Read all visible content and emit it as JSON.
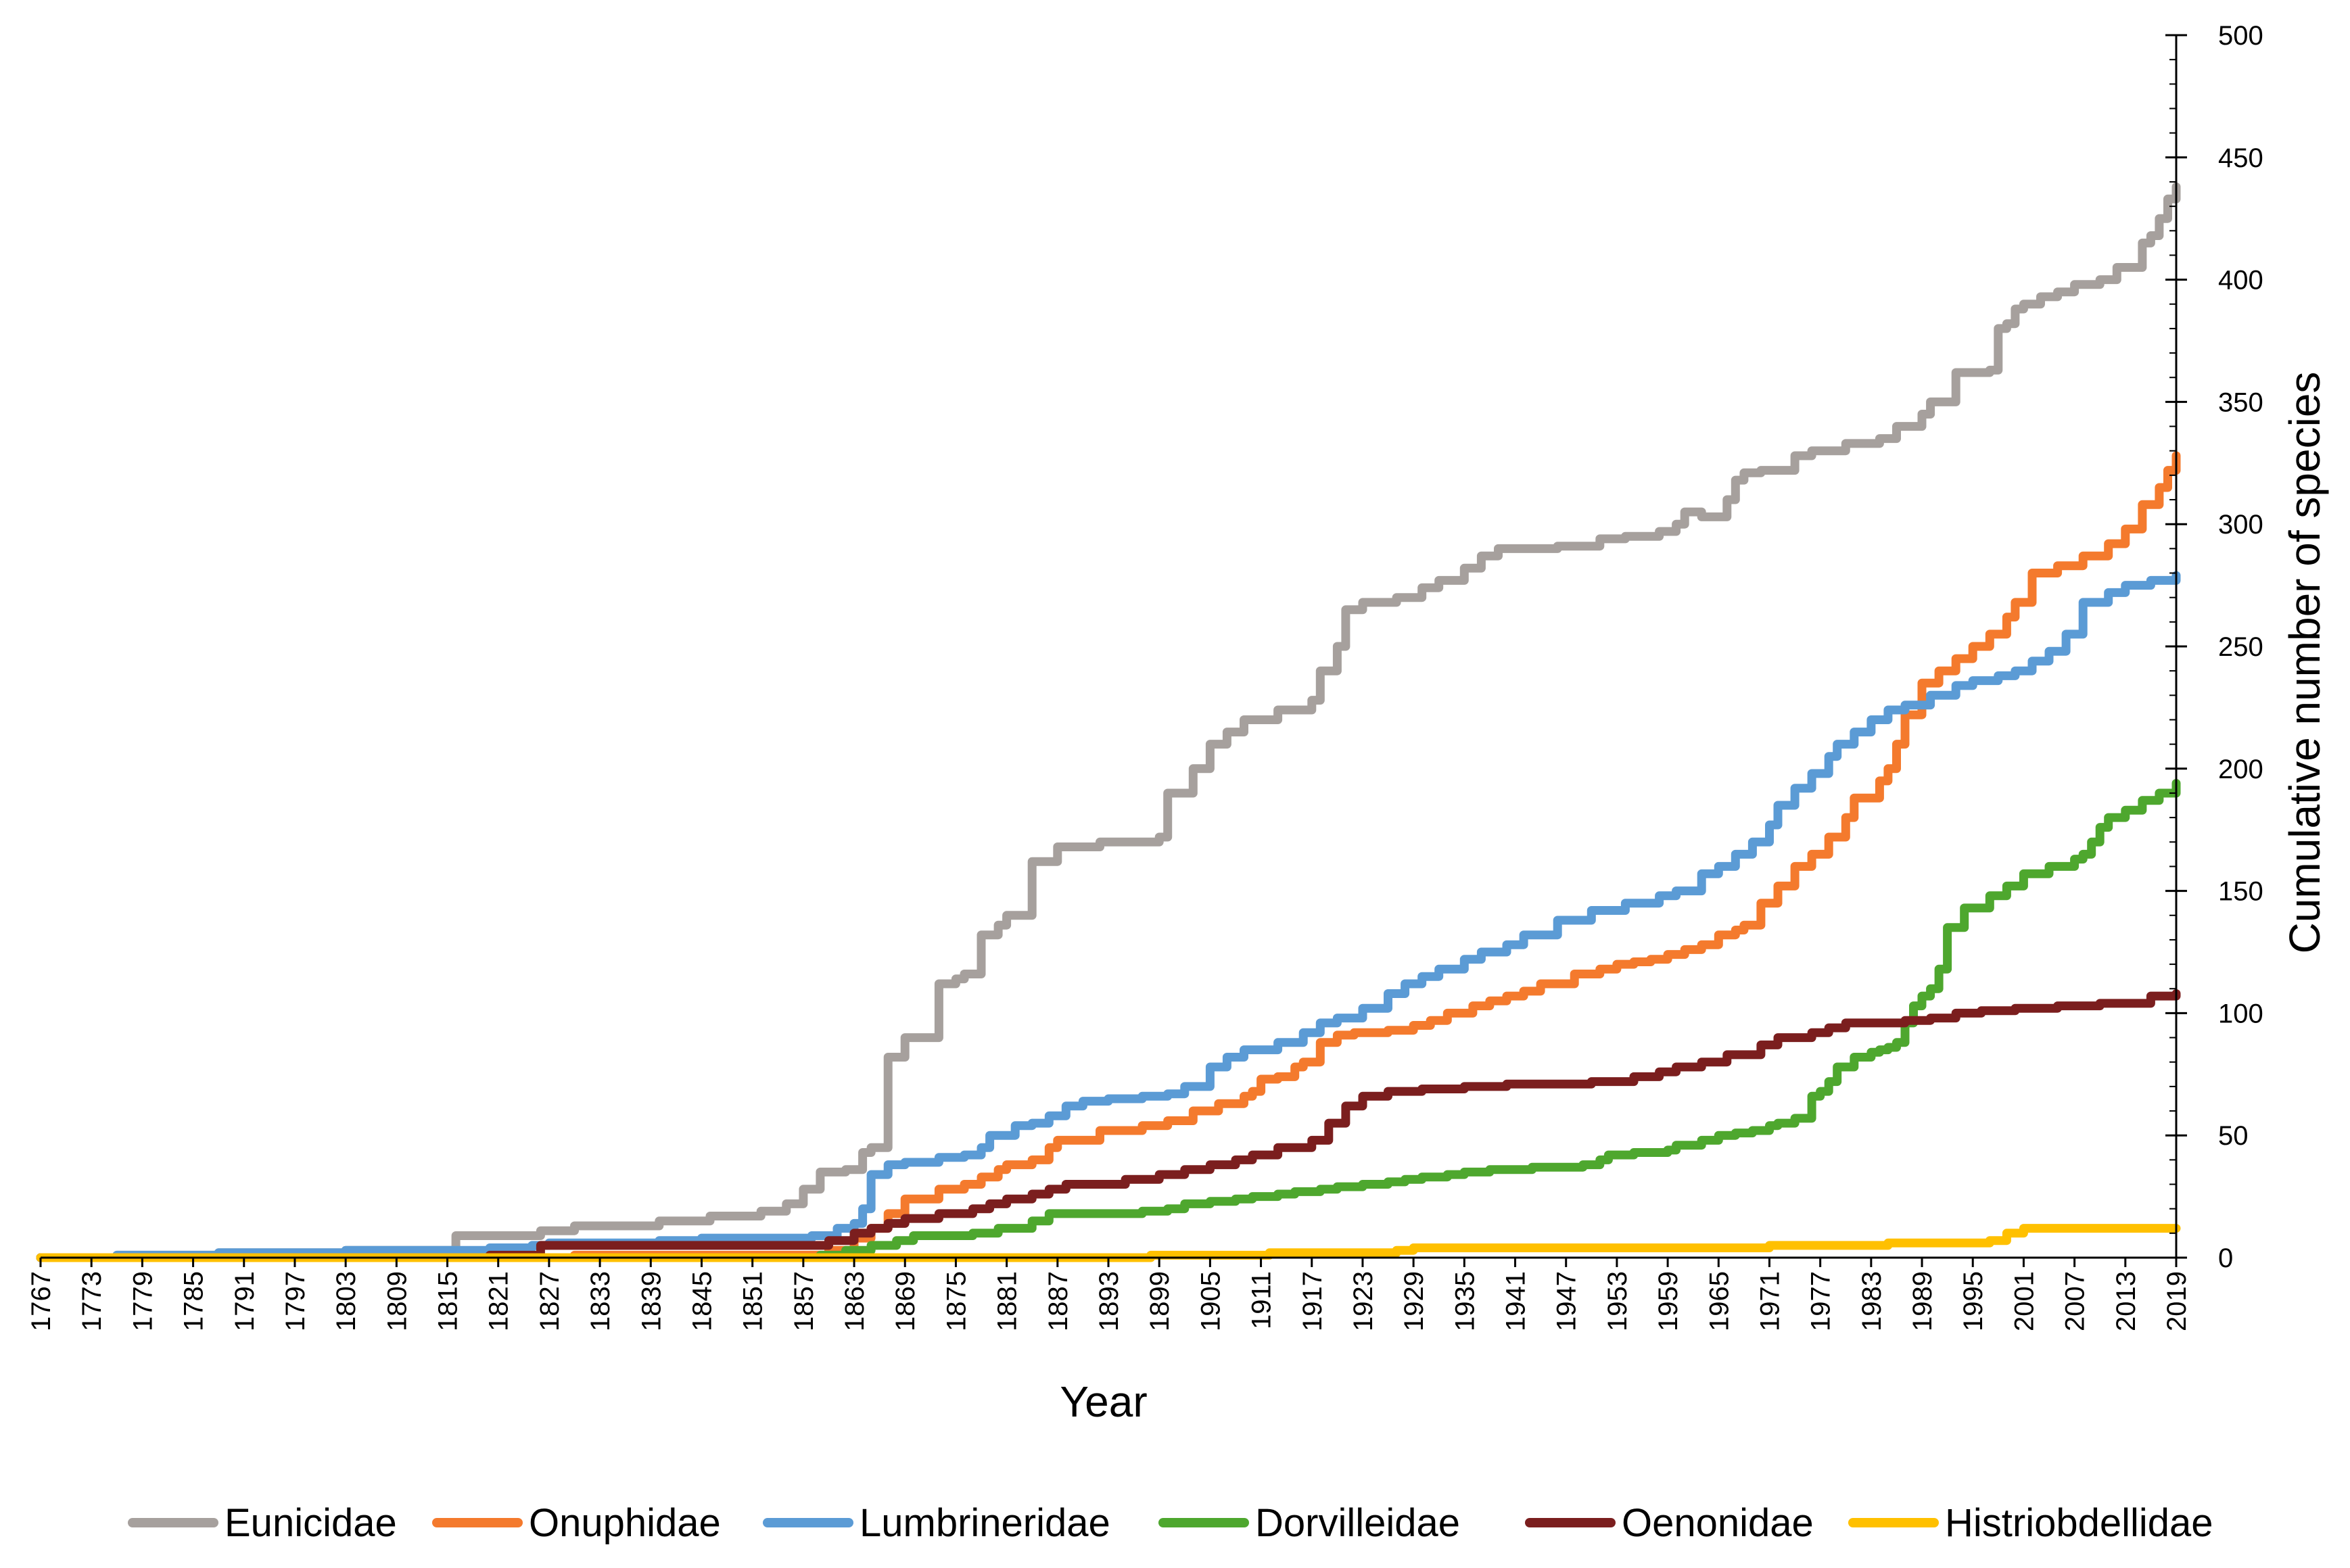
{
  "chart_data": {
    "type": "line",
    "title": "",
    "xlabel": "Year",
    "ylabel": "Cumulative number of species",
    "xlim": [
      1767,
      2019
    ],
    "ylim": [
      0,
      500
    ],
    "y_ticks": [
      0,
      50,
      100,
      150,
      200,
      250,
      300,
      350,
      400,
      450,
      500
    ],
    "x_tick_labels": [
      "1767",
      "1773",
      "1779",
      "1785",
      "1791",
      "1797",
      "1803",
      "1809",
      "1815",
      "1821",
      "1827",
      "1833",
      "1839",
      "1845",
      "1851",
      "1857",
      "1863",
      "1869",
      "1875",
      "1881",
      "1887",
      "1893",
      "1899",
      "1905",
      "1911",
      "1917",
      "1923",
      "1929",
      "1935",
      "1941",
      "1947",
      "1953",
      "1959",
      "1965",
      "1971",
      "1977",
      "1983",
      "1989",
      "1995",
      "2001",
      "2007",
      "2013",
      "2019"
    ],
    "y_axis_position": "right",
    "grid": false,
    "legend_position": "bottom",
    "series": [
      {
        "name": "Eunicidae",
        "color": "#a6a09d",
        "x": [
          1767,
          1776,
          1788,
          1803,
          1816,
          1826,
          1830,
          1840,
          1846,
          1852,
          1855,
          1857,
          1859,
          1862,
          1864,
          1865,
          1867,
          1869,
          1873,
          1875,
          1876,
          1878,
          1880,
          1881,
          1884,
          1887,
          1892,
          1899,
          1900,
          1903,
          1905,
          1907,
          1909,
          1913,
          1917,
          1918,
          1920,
          1921,
          1923,
          1927,
          1930,
          1932,
          1935,
          1937,
          1939,
          1946,
          1951,
          1954,
          1958,
          1960,
          1961,
          1963,
          1966,
          1967,
          1968,
          1970,
          1974,
          1976,
          1980,
          1984,
          1986,
          1989,
          1990,
          1993,
          1997,
          1998,
          1999,
          2000,
          2001,
          2003,
          2005,
          2007,
          2010,
          2012,
          2015,
          2016,
          2017,
          2018,
          2019
        ],
        "values": [
          0,
          1,
          2,
          3,
          9,
          11,
          13,
          15,
          17,
          19,
          22,
          28,
          35,
          36,
          43,
          45,
          82,
          90,
          112,
          114,
          116,
          132,
          136,
          140,
          162,
          168,
          170,
          172,
          190,
          200,
          210,
          215,
          220,
          224,
          228,
          240,
          250,
          265,
          268,
          270,
          274,
          277,
          282,
          287,
          290,
          291,
          294,
          295,
          297,
          300,
          305,
          303,
          310,
          318,
          321,
          322,
          328,
          330,
          333,
          335,
          340,
          345,
          350,
          362,
          363,
          380,
          382,
          388,
          390,
          393,
          395,
          398,
          400,
          405,
          415,
          418,
          425,
          433,
          438
        ]
      },
      {
        "name": "Onuphidae",
        "color": "#f47a2d",
        "x": [
          1767,
          1830,
          1860,
          1863,
          1865,
          1867,
          1869,
          1873,
          1876,
          1878,
          1880,
          1881,
          1884,
          1886,
          1887,
          1892,
          1897,
          1900,
          1903,
          1906,
          1909,
          1910,
          1911,
          1913,
          1915,
          1916,
          1918,
          1920,
          1922,
          1926,
          1929,
          1931,
          1933,
          1936,
          1938,
          1940,
          1942,
          1944,
          1948,
          1951,
          1953,
          1955,
          1957,
          1959,
          1961,
          1963,
          1965,
          1967,
          1968,
          1970,
          1972,
          1974,
          1976,
          1978,
          1980,
          1981,
          1984,
          1985,
          1986,
          1987,
          1989,
          1991,
          1993,
          1995,
          1997,
          1999,
          2000,
          2002,
          2005,
          2008,
          2011,
          2013,
          2015,
          2017,
          2018,
          2019
        ],
        "values": [
          0,
          1,
          3,
          8,
          12,
          18,
          24,
          28,
          30,
          33,
          36,
          38,
          40,
          45,
          48,
          52,
          54,
          56,
          60,
          63,
          66,
          68,
          73,
          74,
          78,
          80,
          88,
          91,
          92,
          93,
          95,
          97,
          100,
          103,
          105,
          107,
          109,
          112,
          116,
          118,
          120,
          121,
          122,
          124,
          126,
          128,
          132,
          134,
          136,
          145,
          152,
          160,
          165,
          172,
          180,
          188,
          195,
          200,
          210,
          222,
          235,
          240,
          245,
          250,
          255,
          262,
          268,
          280,
          283,
          287,
          292,
          298,
          308,
          315,
          322,
          328
        ]
      },
      {
        "name": "Lumbrineridae",
        "color": "#5b9bd5",
        "x": [
          1767,
          1776,
          1788,
          1803,
          1820,
          1825,
          1827,
          1840,
          1845,
          1858,
          1861,
          1863,
          1864,
          1865,
          1867,
          1869,
          1873,
          1876,
          1878,
          1879,
          1882,
          1884,
          1886,
          1888,
          1890,
          1893,
          1897,
          1900,
          1902,
          1905,
          1907,
          1909,
          1913,
          1916,
          1918,
          1920,
          1923,
          1926,
          1928,
          1930,
          1932,
          1935,
          1937,
          1940,
          1942,
          1946,
          1950,
          1954,
          1958,
          1960,
          1963,
          1965,
          1967,
          1969,
          1971,
          1972,
          1974,
          1976,
          1978,
          1979,
          1981,
          1983,
          1985,
          1987,
          1990,
          1993,
          1995,
          1998,
          2000,
          2002,
          2004,
          2006,
          2008,
          2011,
          2013,
          2016,
          2019
        ],
        "values": [
          0,
          1,
          2,
          3,
          4,
          5,
          6,
          7,
          8,
          9,
          12,
          14,
          20,
          34,
          38,
          39,
          41,
          42,
          45,
          50,
          54,
          55,
          58,
          62,
          64,
          65,
          66,
          67,
          70,
          78,
          82,
          85,
          88,
          92,
          96,
          98,
          102,
          108,
          112,
          115,
          118,
          122,
          125,
          128,
          132,
          138,
          142,
          145,
          148,
          150,
          157,
          160,
          165,
          170,
          177,
          185,
          192,
          198,
          205,
          210,
          215,
          220,
          224,
          226,
          230,
          234,
          236,
          238,
          240,
          244,
          248,
          255,
          268,
          272,
          275,
          277,
          279
        ]
      },
      {
        "name": "Dorvilleidae",
        "color": "#4ea72e",
        "x": [
          1767,
          1859,
          1862,
          1865,
          1868,
          1870,
          1874,
          1877,
          1880,
          1884,
          1886,
          1890,
          1897,
          1900,
          1902,
          1905,
          1908,
          1910,
          1913,
          1915,
          1918,
          1920,
          1923,
          1926,
          1928,
          1930,
          1933,
          1935,
          1938,
          1943,
          1949,
          1951,
          1952,
          1955,
          1957,
          1959,
          1960,
          1963,
          1965,
          1967,
          1969,
          1971,
          1972,
          1974,
          1976,
          1977,
          1978,
          1979,
          1981,
          1983,
          1984,
          1985,
          1986,
          1987,
          1988,
          1989,
          1990,
          1991,
          1992,
          1994,
          1997,
          1999,
          2001,
          2004,
          2007,
          2008,
          2009,
          2010,
          2011,
          2013,
          2015,
          2017,
          2019
        ],
        "values": [
          0,
          1,
          3,
          5,
          7,
          9,
          9,
          10,
          12,
          15,
          18,
          18,
          19,
          20,
          22,
          23,
          24,
          25,
          26,
          27,
          28,
          29,
          30,
          31,
          32,
          33,
          34,
          35,
          36,
          37,
          38,
          40,
          42,
          43,
          43,
          44,
          46,
          48,
          50,
          51,
          52,
          54,
          55,
          57,
          66,
          68,
          72,
          78,
          82,
          84,
          85,
          86,
          88,
          96,
          103,
          107,
          110,
          118,
          135,
          143,
          148,
          152,
          157,
          160,
          163,
          165,
          170,
          176,
          180,
          183,
          187,
          190,
          194
        ]
      },
      {
        "name": "Oenonidae",
        "color": "#7b1e1e",
        "x": [
          1767,
          1820,
          1826,
          1860,
          1863,
          1865,
          1867,
          1869,
          1873,
          1877,
          1879,
          1881,
          1884,
          1886,
          1888,
          1895,
          1899,
          1902,
          1905,
          1908,
          1910,
          1913,
          1917,
          1919,
          1921,
          1923,
          1926,
          1930,
          1935,
          1940,
          1950,
          1955,
          1958,
          1960,
          1963,
          1966,
          1970,
          1972,
          1976,
          1978,
          1980,
          1984,
          1987,
          1990,
          1993,
          1996,
          2000,
          2005,
          2010,
          2014,
          2016,
          2019
        ],
        "values": [
          0,
          1,
          5,
          7,
          10,
          12,
          14,
          16,
          18,
          20,
          22,
          24,
          26,
          28,
          30,
          32,
          34,
          36,
          38,
          40,
          42,
          45,
          48,
          55,
          62,
          66,
          68,
          69,
          70,
          71,
          72,
          74,
          76,
          78,
          80,
          83,
          87,
          90,
          92,
          94,
          96,
          96,
          97,
          98,
          100,
          101,
          102,
          103,
          104,
          104,
          107,
          108
        ]
      },
      {
        "name": "Histriobdellidae",
        "color": "#ffc000",
        "x": [
          1767,
          1898,
          1912,
          1927,
          1929,
          1969,
          1971,
          1985,
          1997,
          1999,
          2001,
          2019
        ],
        "values": [
          0,
          1,
          2,
          3,
          4,
          4,
          5,
          6,
          7,
          10,
          12,
          12
        ]
      }
    ]
  }
}
